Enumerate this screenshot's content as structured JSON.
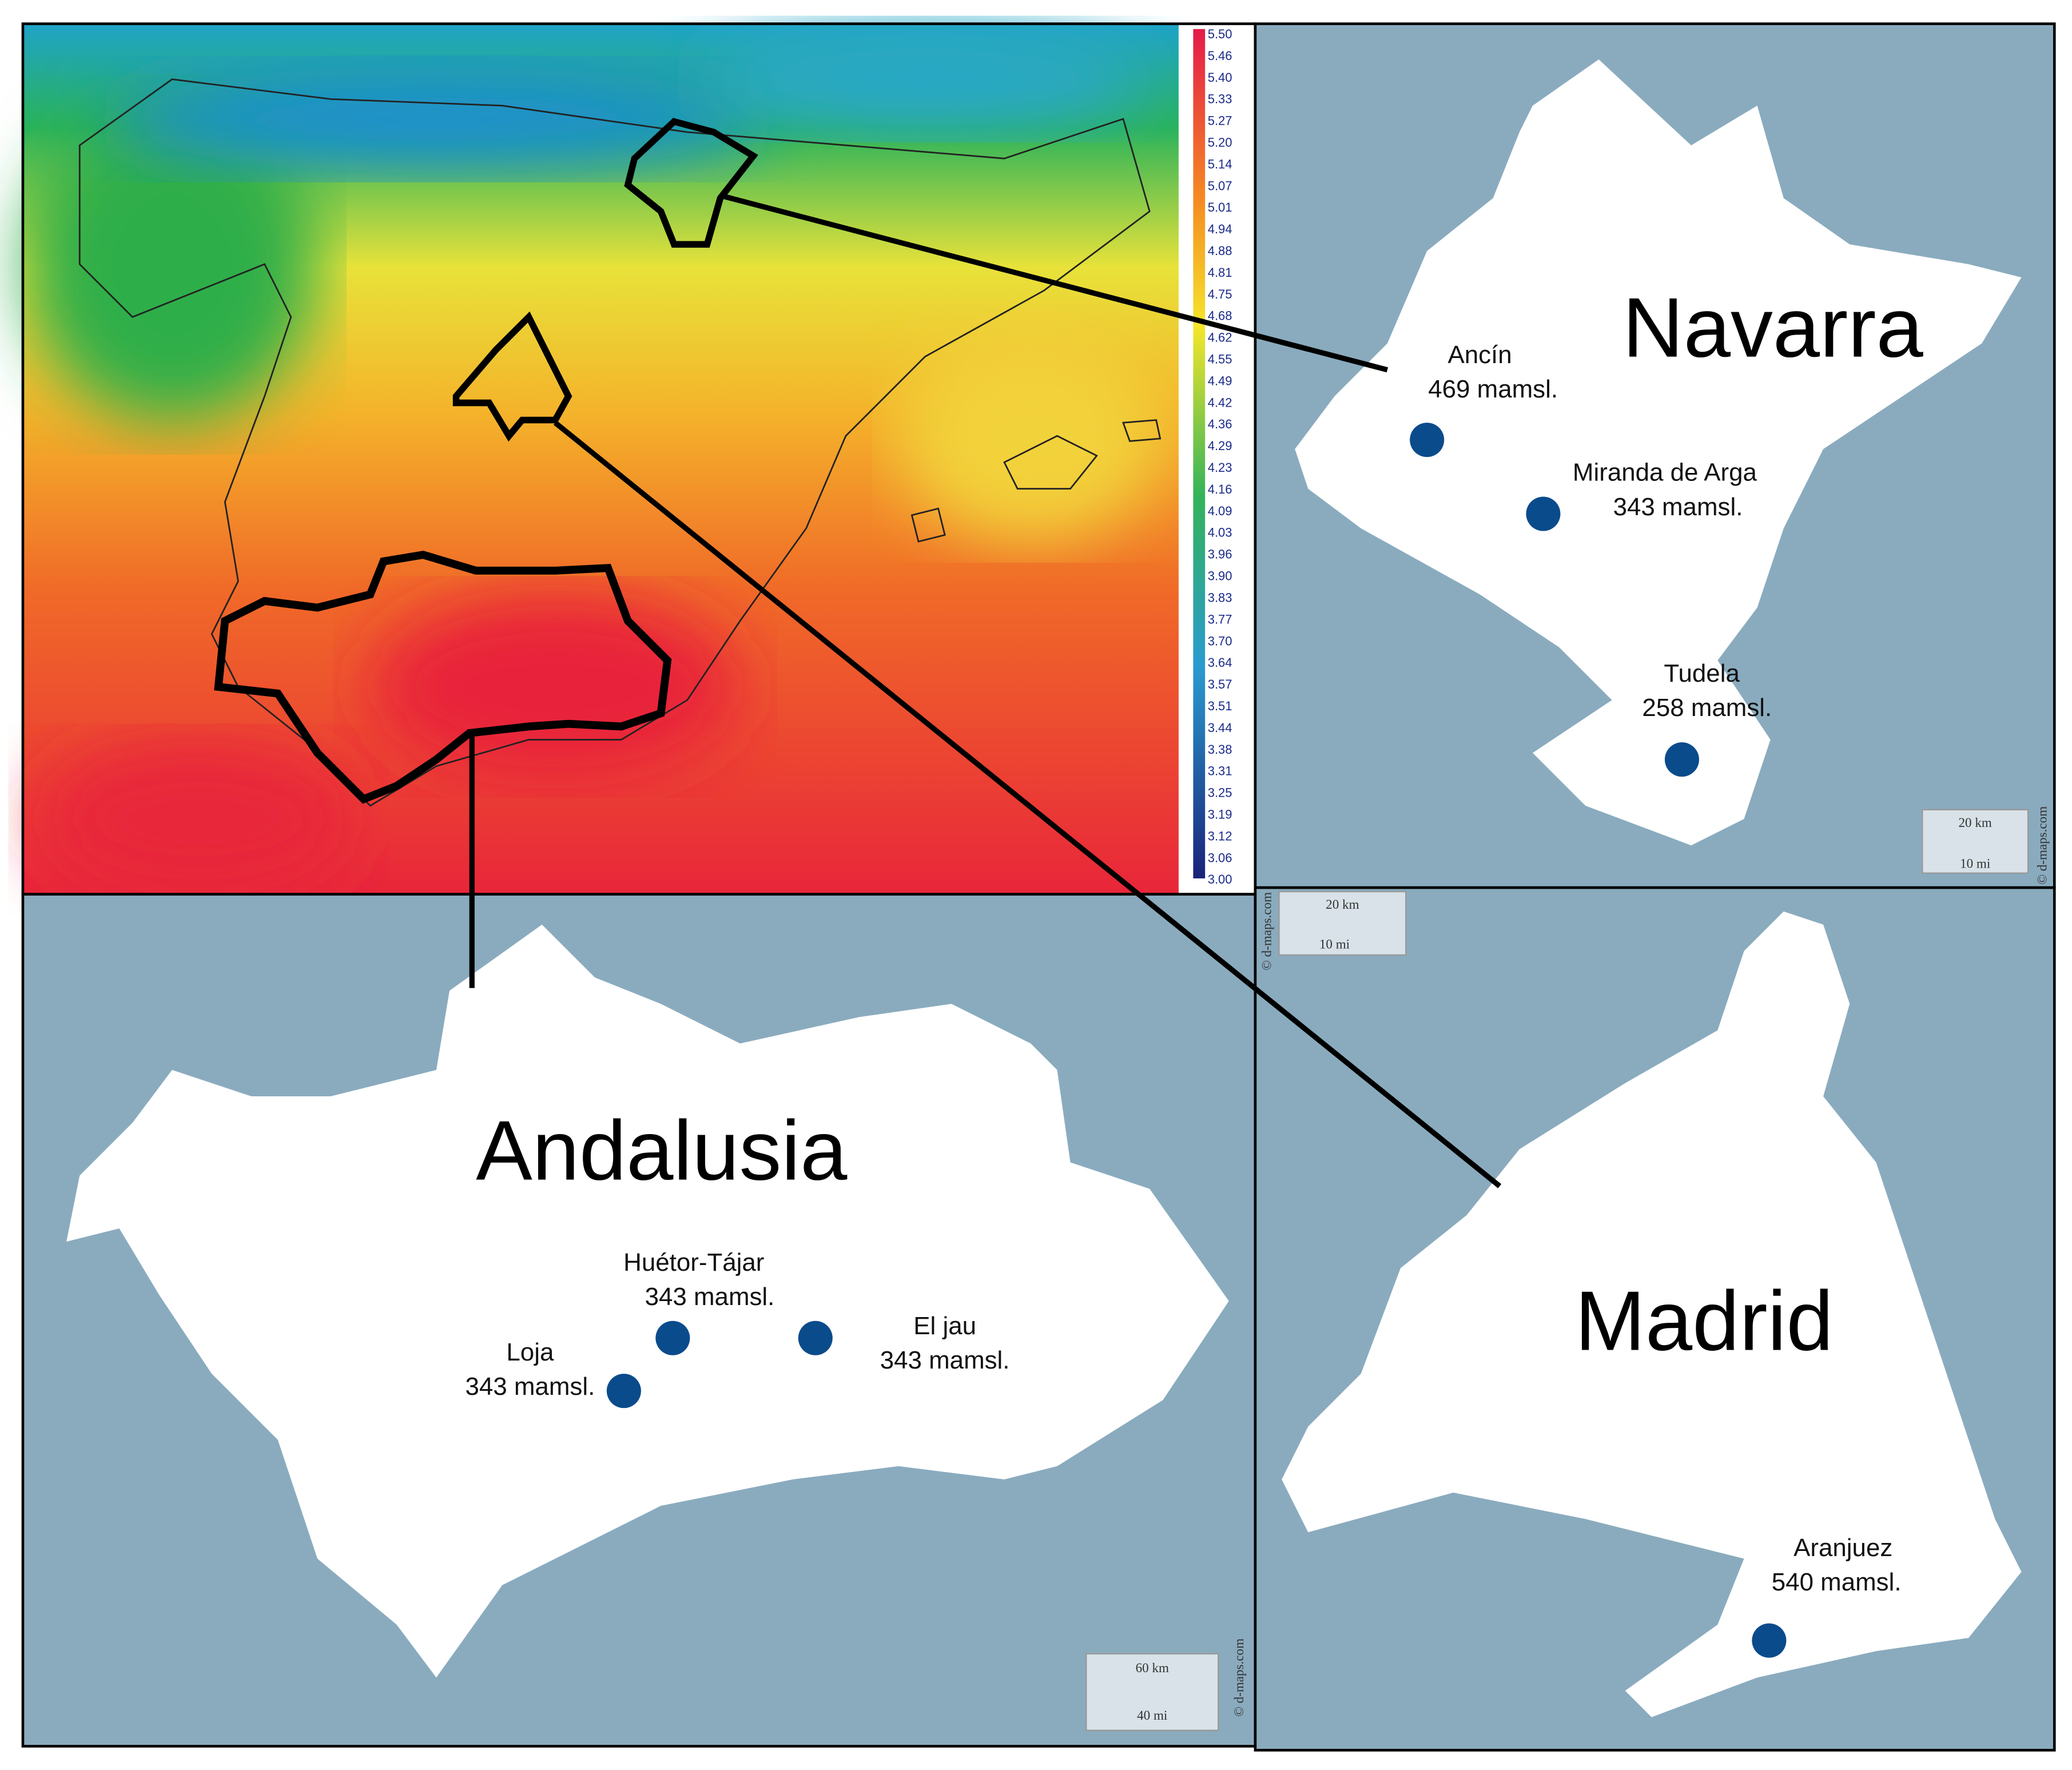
{
  "colorbar": {
    "labels": [
      "5.50",
      "5.46",
      "5.40",
      "5.33",
      "5.27",
      "5.20",
      "5.14",
      "5.07",
      "5.01",
      "4.94",
      "4.88",
      "4.81",
      "4.75",
      "4.68",
      "4.62",
      "4.55",
      "4.49",
      "4.42",
      "4.36",
      "4.29",
      "4.23",
      "4.16",
      "4.09",
      "4.03",
      "3.96",
      "3.90",
      "3.83",
      "3.77",
      "3.70",
      "3.64",
      "3.57",
      "3.51",
      "3.44",
      "3.38",
      "3.31",
      "3.25",
      "3.19",
      "3.12",
      "3.06",
      "3.00"
    ]
  },
  "regions": [
    {
      "name": "Navarra",
      "stations": [
        {
          "name": "Ancín",
          "altitude": "469 mamsl."
        },
        {
          "name": "Miranda de Arga",
          "altitude": "343 mamsl."
        },
        {
          "name": "Tudela",
          "altitude": "258 mamsl."
        }
      ],
      "scale": {
        "km": "20 km",
        "mi": "10 mi"
      },
      "credit": "© d-maps.com"
    },
    {
      "name": "Andalusia",
      "stations": [
        {
          "name": "Huétor-Tájar",
          "altitude": "343 mamsl."
        },
        {
          "name": "Loja",
          "altitude": "343 mamsl."
        },
        {
          "name": "El jau",
          "altitude": "343 mamsl."
        }
      ],
      "scale": {
        "km": "60 km",
        "mi": "40 mi"
      },
      "credit": "© d-maps.com"
    },
    {
      "name": "Madrid",
      "stations": [
        {
          "name": "Aranjuez",
          "altitude": "540 mamsl."
        }
      ],
      "scale": {
        "km": "20 km",
        "mi": "10 mi"
      },
      "credit": "© d-maps.com"
    }
  ]
}
